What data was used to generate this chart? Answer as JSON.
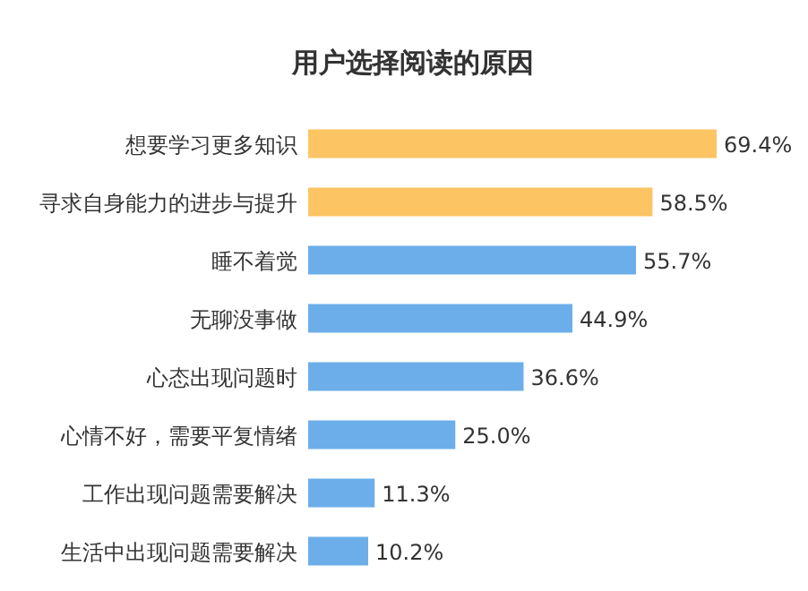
{
  "chart_data": {
    "type": "bar",
    "orientation": "horizontal",
    "title": "用户选择阅读的原因",
    "categories": [
      "想要学习更多知识",
      "寻求自身能力的进步与提升",
      "睡不着觉",
      "无聊没事做",
      "心态出现问题时",
      "心情不好，需要平复情绪",
      "工作出现问题需要解决",
      "生活中出现问题需要解决"
    ],
    "values": [
      69.4,
      58.5,
      55.7,
      44.9,
      36.6,
      25.0,
      11.3,
      10.2
    ],
    "value_labels": [
      "69.4%",
      "58.5%",
      "55.7%",
      "44.9%",
      "36.6%",
      "25.0%",
      "11.3%",
      "10.2%"
    ],
    "colors": [
      "#fcc463",
      "#fcc463",
      "#6caeea",
      "#6caeea",
      "#6caeea",
      "#6caeea",
      "#6caeea",
      "#6caeea"
    ]
  }
}
